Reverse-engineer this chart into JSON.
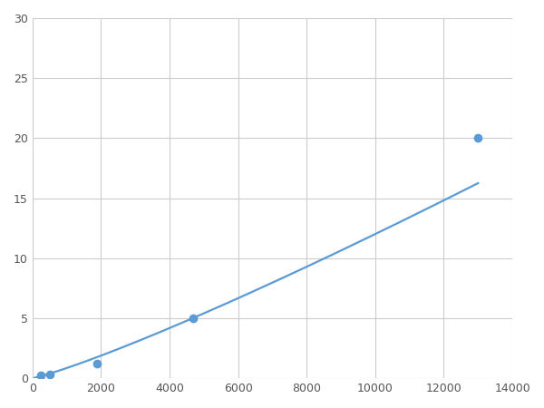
{
  "x_points": [
    250,
    500,
    1875,
    4688,
    13000
  ],
  "y_points": [
    0.22,
    0.35,
    1.2,
    5.0,
    20.0
  ],
  "line_color": "#5b9bd5",
  "marker_color": "#5b9bd5",
  "marker_size": 6,
  "line_width": 1.6,
  "xlim": [
    0,
    14000
  ],
  "ylim": [
    0,
    30
  ],
  "xticks": [
    0,
    2000,
    4000,
    6000,
    8000,
    10000,
    12000,
    14000
  ],
  "yticks": [
    0,
    5,
    10,
    15,
    20,
    25,
    30
  ],
  "grid_color": "#cccccc",
  "background_color": "#ffffff",
  "figsize": [
    6.0,
    4.5
  ],
  "dpi": 100
}
